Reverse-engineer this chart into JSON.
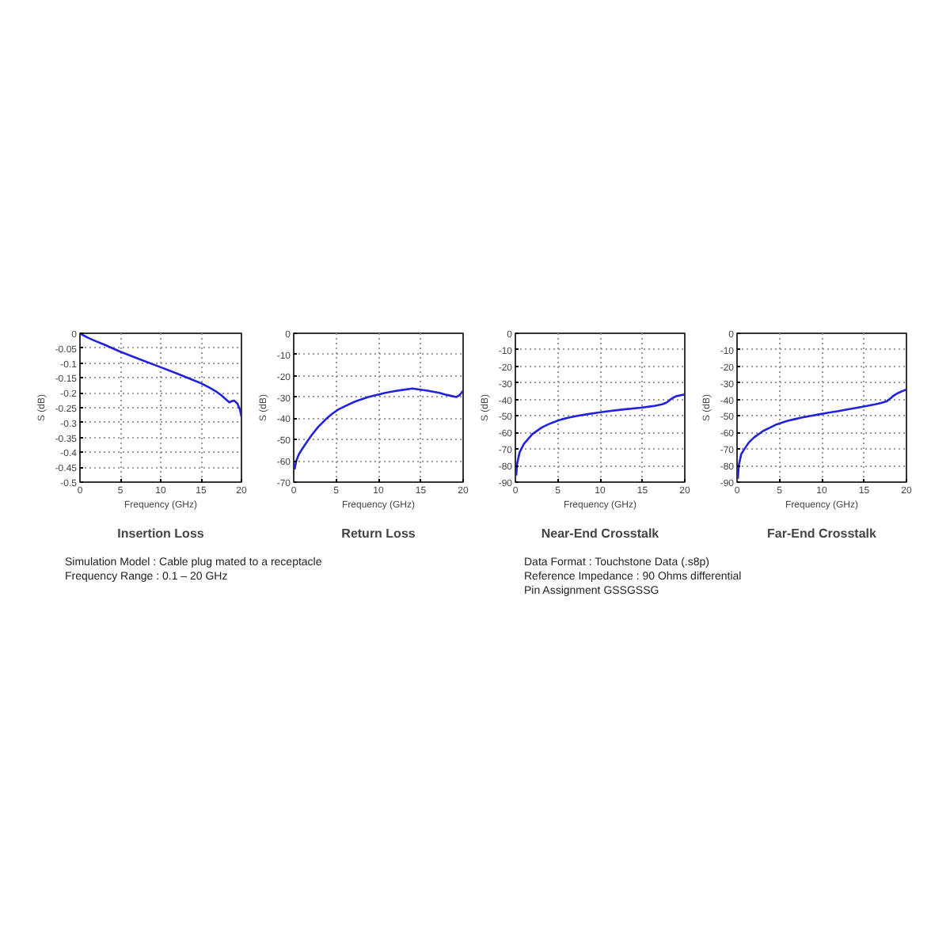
{
  "chart_data": [
    {
      "type": "line",
      "title": "Insertion Loss",
      "xlabel": "Frequency (GHz)",
      "ylabel": "S (dB)",
      "xlim": [
        0,
        20
      ],
      "ylim": [
        -0.5,
        0
      ],
      "xticks": [
        0,
        5,
        10,
        15,
        20
      ],
      "yticks": [
        0,
        -0.05,
        -0.1,
        -0.15,
        -0.2,
        -0.25,
        -0.3,
        -0.35,
        -0.4,
        -0.45,
        -0.5
      ],
      "grid": true,
      "x": [
        0.1,
        1,
        2,
        3,
        5,
        7,
        10,
        12,
        14,
        15,
        16,
        17,
        17.5,
        18,
        18.5,
        18.8,
        19.1,
        19.5,
        19.8,
        20
      ],
      "series": [
        {
          "color": "#2222dd",
          "values": [
            -0.002,
            -0.015,
            -0.027,
            -0.038,
            -0.062,
            -0.083,
            -0.114,
            -0.135,
            -0.157,
            -0.168,
            -0.182,
            -0.198,
            -0.208,
            -0.22,
            -0.232,
            -0.228,
            -0.226,
            -0.236,
            -0.255,
            -0.28
          ]
        }
      ],
      "annotations": [
        "Simulation Model : Cable plug mated to a receptacle",
        "Frequency Range : 0.1 – 20 GHz"
      ]
    },
    {
      "type": "line",
      "title": "Return Loss",
      "xlabel": "Frequency (GHz)",
      "ylabel": "S (dB)",
      "xlim": [
        0,
        20
      ],
      "ylim": [
        -70,
        0
      ],
      "xticks": [
        0,
        5,
        10,
        15,
        20
      ],
      "yticks": [
        0,
        -10,
        -20,
        -30,
        -40,
        -50,
        -60,
        -70
      ],
      "grid": true,
      "x": [
        0.1,
        0.3,
        0.6,
        0.9,
        1.4,
        1.75,
        2.1,
        2.5,
        2.9,
        3.4,
        3.9,
        4.5,
        5.2,
        6.2,
        7.3,
        8.8,
        10.8,
        12.2,
        14,
        15.8,
        17.2,
        18.1,
        19.2,
        19.6,
        20
      ],
      "series": [
        {
          "color": "#2222dd",
          "values": [
            -64,
            -60,
            -57,
            -55,
            -52,
            -50,
            -48,
            -46,
            -44,
            -42,
            -40,
            -38,
            -36,
            -34,
            -32,
            -30,
            -28,
            -27,
            -26,
            -27,
            -28,
            -29,
            -30,
            -29,
            -27
          ]
        }
      ]
    },
    {
      "type": "line",
      "title": "Near-End Crosstalk",
      "xlabel": "Frequency (GHz)",
      "ylabel": "S (dB)",
      "xlim": [
        0,
        20
      ],
      "ylim": [
        -90,
        0
      ],
      "xticks": [
        0,
        5,
        10,
        15,
        20
      ],
      "yticks": [
        0,
        -10,
        -20,
        -30,
        -40,
        -50,
        -60,
        -70,
        -80,
        -90
      ],
      "grid": true,
      "x": [
        0.1,
        0.2,
        0.5,
        1,
        1.5,
        2,
        3.1,
        3.9,
        4.9,
        5.5,
        6.3,
        7.2,
        8.4,
        9.7,
        11.1,
        12.8,
        14.8,
        16.3,
        17.3,
        17.8,
        18.1,
        18.3,
        18.6,
        19,
        20
      ],
      "series": [
        {
          "color": "#2222dd",
          "values": [
            -86,
            -79,
            -72,
            -67,
            -64,
            -61,
            -57,
            -55,
            -53,
            -52,
            -51,
            -50,
            -49,
            -48,
            -47,
            -46,
            -45,
            -44,
            -43,
            -42,
            -41,
            -40,
            -39,
            -38,
            -37
          ]
        }
      ],
      "annotations": [
        "Data Format : Touchstone Data (.s8p)",
        "Reference Impedance : 90 Ohms differential",
        "Pin Assignment GSSGSSG"
      ]
    },
    {
      "type": "line",
      "title": "Far-End Crosstalk",
      "xlabel": "Frequency (GHz)",
      "ylabel": "S (dB)",
      "xlim": [
        0,
        20
      ],
      "ylim": [
        -90,
        0
      ],
      "xticks": [
        0,
        5,
        10,
        15,
        20
      ],
      "yticks": [
        0,
        -10,
        -20,
        -30,
        -40,
        -50,
        -60,
        -70,
        -80,
        -90
      ],
      "grid": true,
      "x": [
        0.1,
        0.2,
        0.5,
        1,
        1.4,
        2,
        3.1,
        3.9,
        4.7,
        5.9,
        6.75,
        7.6,
        8.6,
        9.7,
        10.8,
        12,
        13.1,
        14.2,
        15.2,
        16.3,
        17.1,
        17.7,
        18.2,
        18.4,
        18.7,
        19.05,
        19.5,
        20
      ],
      "series": [
        {
          "color": "#2222dd",
          "values": [
            -88,
            -80,
            -73,
            -69,
            -66,
            -63,
            -59,
            -57,
            -55,
            -53,
            -52,
            -51,
            -50,
            -49,
            -48,
            -47,
            -46,
            -45,
            -44,
            -43,
            -42,
            -41,
            -39,
            -38,
            -37,
            -36,
            -35,
            -34
          ]
        }
      ]
    }
  ]
}
